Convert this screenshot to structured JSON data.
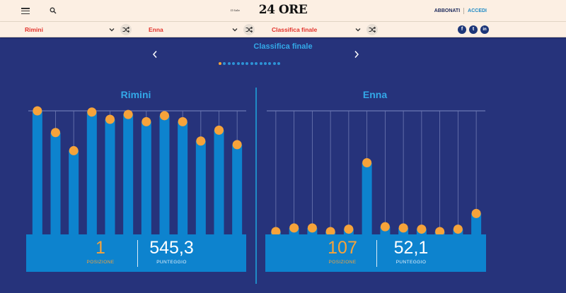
{
  "header": {
    "logo_small": "Il Sole",
    "logo": "24 ORE",
    "abbonati": "ABBONATI",
    "accedi": "ACCEDI"
  },
  "selectors": {
    "city_a": "Rimini",
    "city_b": "Enna",
    "ranking": "Classifica finale"
  },
  "social": {
    "facebook": "f",
    "twitter": "t",
    "linkedin": "in"
  },
  "slider": {
    "title": "Classifica finale",
    "dot_count": 14,
    "active_dot": 0
  },
  "colors": {
    "background": "#26337b",
    "bar": "#0d83ce",
    "marker": "#f6a33a",
    "accent_red": "#e2322b"
  },
  "left": {
    "name": "Rimini",
    "position": "1",
    "position_label": "POSIZIONE",
    "score": "545,3",
    "score_label": "PUNTEGGIO"
  },
  "right": {
    "name": "Enna",
    "position": "107",
    "position_label": "POSIZIONE",
    "score": "52,1",
    "score_label": "PUNTEGGIO"
  },
  "chart_data": [
    {
      "type": "bar",
      "series": [
        {
          "values": [
            1.0,
            0.82,
            0.67,
            0.99,
            0.93,
            0.97,
            0.91,
            0.96,
            0.91,
            0.75,
            0.84,
            0.72
          ]
        }
      ],
      "ylim": [
        0,
        1
      ]
    },
    {
      "type": "bar",
      "series": [
        {
          "values": [
            0.0,
            0.03,
            0.03,
            0.0,
            0.02,
            0.57,
            0.04,
            0.03,
            0.02,
            0.0,
            0.02,
            0.15
          ]
        }
      ],
      "ylim": [
        0,
        1
      ]
    }
  ]
}
